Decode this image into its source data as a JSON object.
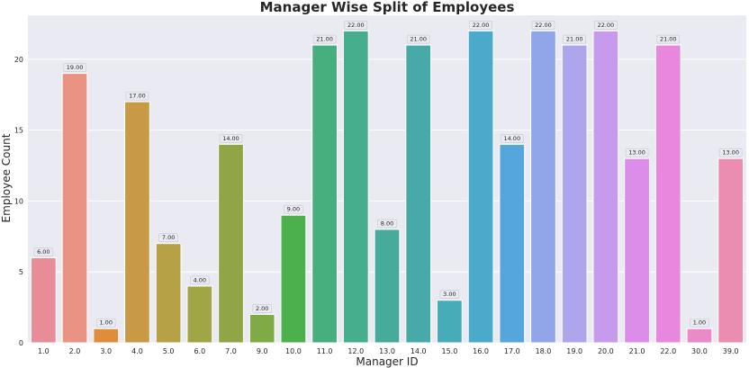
{
  "chart_data": {
    "type": "bar",
    "title": "Manager Wise Split of Employees",
    "xlabel": "Manager ID",
    "ylabel": "Employee Count",
    "categories": [
      "1.0",
      "2.0",
      "3.0",
      "4.0",
      "5.0",
      "6.0",
      "7.0",
      "9.0",
      "10.0",
      "11.0",
      "12.0",
      "13.0",
      "14.0",
      "15.0",
      "16.0",
      "17.0",
      "18.0",
      "19.0",
      "20.0",
      "21.0",
      "22.0",
      "30.0",
      "39.0"
    ],
    "values": [
      6,
      19,
      1,
      17,
      7,
      4,
      14,
      2,
      9,
      21,
      22,
      8,
      21,
      3,
      22,
      14,
      22,
      21,
      22,
      13,
      21,
      1,
      13
    ],
    "data_labels": [
      "6.00",
      "19.00",
      "1.00",
      "17.00",
      "7.00",
      "4.00",
      "14.00",
      "2.00",
      "9.00",
      "21.00",
      "22.00",
      "8.00",
      "21.00",
      "3.00",
      "22.00",
      "14.00",
      "22.00",
      "21.00",
      "22.00",
      "13.00",
      "21.00",
      "1.00",
      "13.00"
    ],
    "colors": [
      "#e88c97",
      "#ea9383",
      "#df8d3c",
      "#c99a45",
      "#b6a146",
      "#a0a646",
      "#90a546",
      "#7fab47",
      "#4cb04d",
      "#46af7d",
      "#46ad8d",
      "#46ab9b",
      "#47aaa8",
      "#48abb8",
      "#4baacb",
      "#55a6db",
      "#90a6e8",
      "#aea6ec",
      "#c69aec",
      "#dc8dea",
      "#e887dd",
      "#ea8ac9",
      "#eb8db0"
    ],
    "yticks": [
      "0",
      "5",
      "10",
      "15",
      "20"
    ],
    "ylim": [
      0,
      23.1
    ],
    "grid": true,
    "background": "#eaeaf2"
  }
}
